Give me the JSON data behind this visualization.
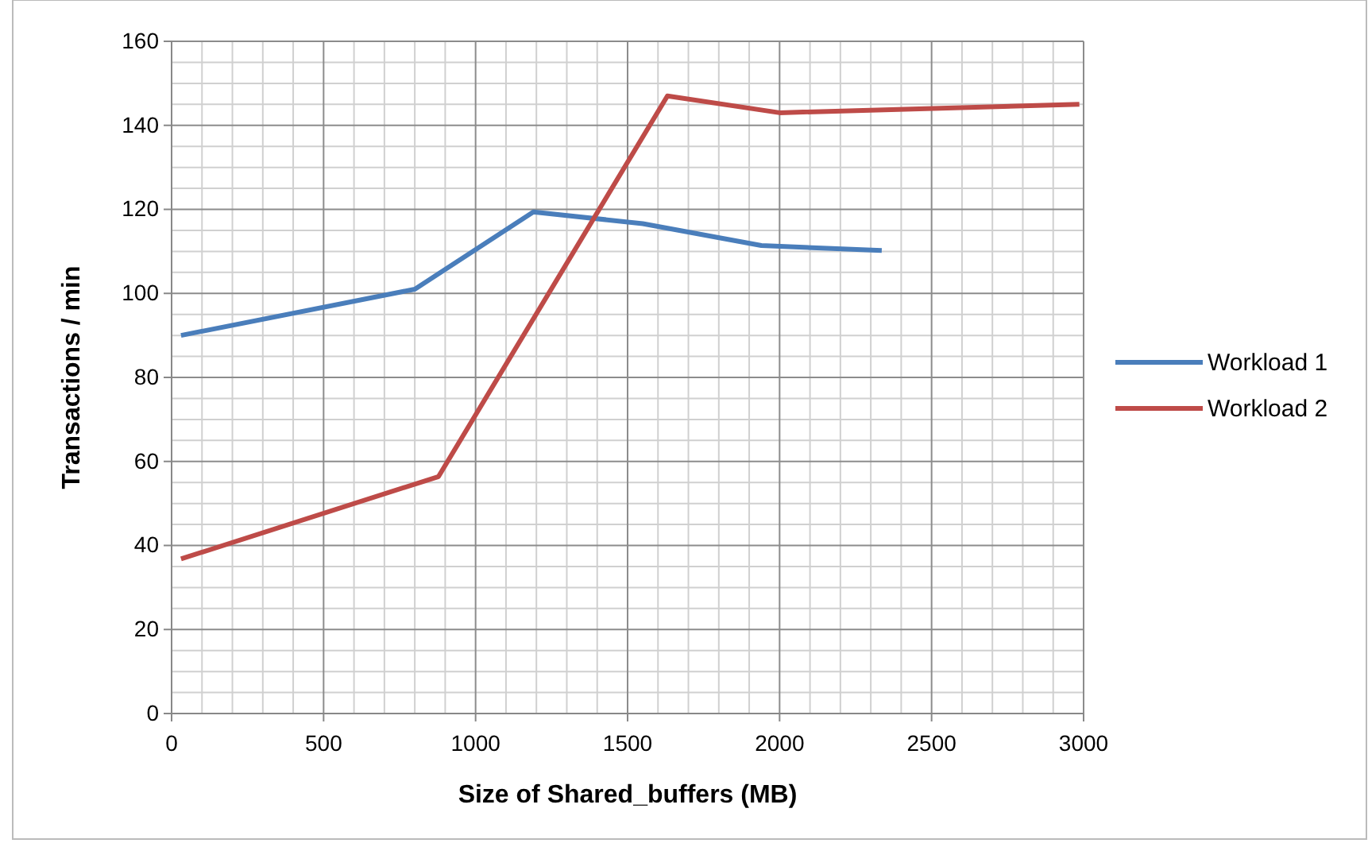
{
  "chart_data": {
    "type": "line",
    "xlabel": "Size of Shared_buffers (MB)",
    "ylabel": "Transactions / min",
    "xlim": [
      0,
      3000
    ],
    "xticks": [
      0,
      500,
      1000,
      1500,
      2000,
      2500,
      3000
    ],
    "ylim": [
      0,
      160
    ],
    "yticks": [
      0,
      20,
      40,
      60,
      80,
      100,
      120,
      140,
      160
    ],
    "grid": true,
    "legend": "right",
    "marker": "none",
    "series": [
      {
        "name": "Workload 1",
        "color": "#4a7ebb",
        "x": [
          31,
          800,
          1190,
          1550,
          1940,
          2336
        ],
        "values": [
          90,
          101,
          119.4,
          116.6,
          111.4,
          110.2
        ]
      },
      {
        "name": "Workload 2",
        "color": "#be4b48",
        "x": [
          31,
          878,
          1631,
          2000,
          2986
        ],
        "values": [
          36.8,
          56.4,
          147,
          143,
          145
        ]
      }
    ]
  }
}
